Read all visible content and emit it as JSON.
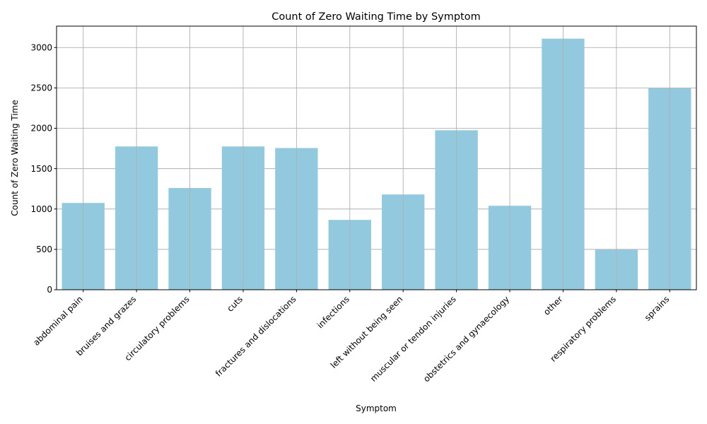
{
  "chart_data": {
    "type": "bar",
    "title": "Count of Zero Waiting Time by Symptom",
    "xlabel": "Symptom",
    "ylabel": "Count of Zero Waiting Time",
    "categories": [
      "abdominal pain",
      "bruises and grazes",
      "circulatory problems",
      "cuts",
      "fractures and dislocations",
      "infections",
      "left without being seen",
      "muscular or tendon injuries",
      "obstetrics and gynaecology",
      "other",
      "respiratory problems",
      "sprains"
    ],
    "values": [
      1075,
      1775,
      1260,
      1775,
      1755,
      865,
      1180,
      1975,
      1040,
      3110,
      495,
      2495
    ],
    "ylim": [
      0,
      3265
    ],
    "yticks": [
      0,
      500,
      1000,
      1500,
      2000,
      2500,
      3000
    ],
    "grid": true,
    "bar_color": "#92c9de",
    "grid_color": "#b0b0b0"
  }
}
